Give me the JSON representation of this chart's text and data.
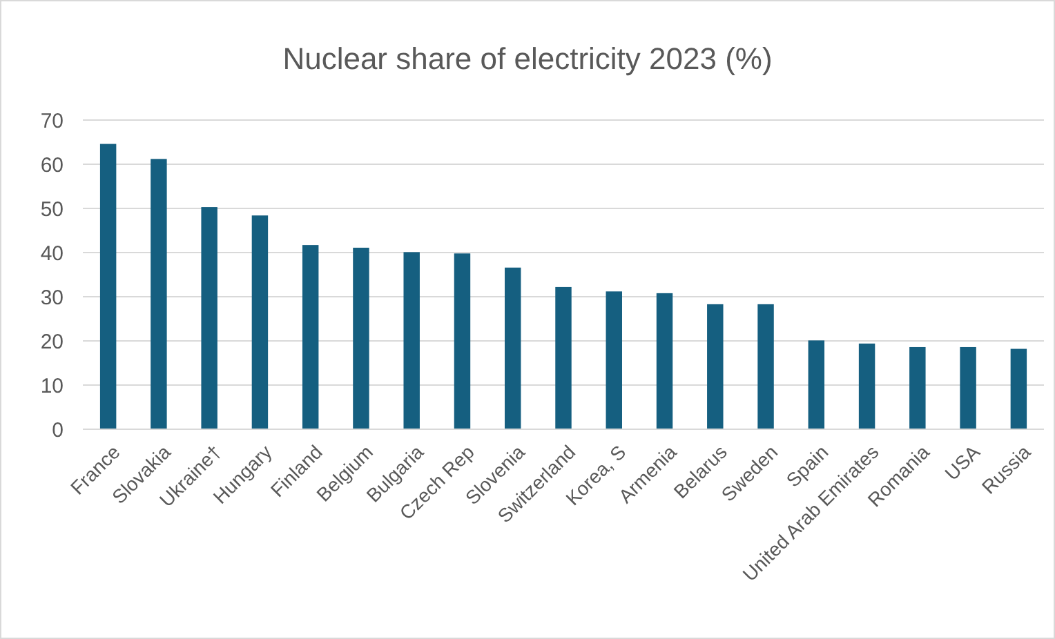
{
  "chart_data": {
    "type": "bar",
    "title": "Nuclear share of electricity 2023 (%)",
    "categories": [
      "France",
      "Slovakia",
      "Ukraine†",
      "Hungary",
      "Finland",
      "Belgium",
      "Bulgaria",
      "Czech Rep",
      "Slovenia",
      "Switzerland",
      "Korea, S",
      "Armenia",
      "Belarus",
      "Sweden",
      "Spain",
      "United Arab Emirates",
      "Romania",
      "USA",
      "Russia"
    ],
    "values": [
      64.6,
      61.2,
      50.3,
      48.4,
      41.7,
      41.1,
      40.1,
      39.8,
      36.6,
      32.2,
      31.2,
      30.8,
      28.3,
      28.3,
      20.1,
      19.4,
      18.6,
      18.6,
      18.2
    ],
    "color": "#155f80",
    "ylim": [
      0,
      70
    ],
    "yticks": [
      0,
      10,
      20,
      30,
      40,
      50,
      60,
      70
    ],
    "grid": "y"
  }
}
